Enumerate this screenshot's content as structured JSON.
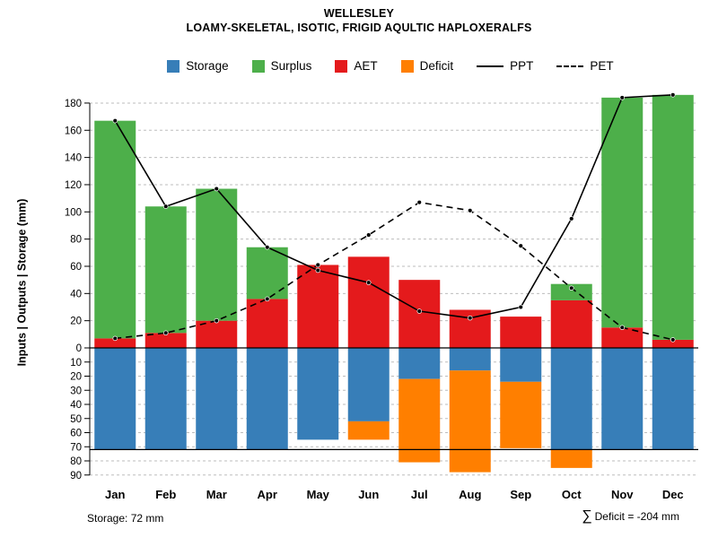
{
  "title": "WELLESLEY",
  "subtitle": "LOAMY-SKELETAL, ISOTIC, FRIGID AQULTIC HAPLOXERALFS",
  "ylabel": "Inputs | Outputs | Storage  (mm)",
  "legend": {
    "items": [
      {
        "label": "Storage",
        "type": "box",
        "color": "#377EB8"
      },
      {
        "label": "Surplus",
        "type": "box",
        "color": "#4DAF4A"
      },
      {
        "label": "AET",
        "type": "box",
        "color": "#E41A1C"
      },
      {
        "label": "Deficit",
        "type": "box",
        "color": "#FF7F00"
      },
      {
        "label": "PPT",
        "type": "line-solid",
        "color": "#000000"
      },
      {
        "label": "PET",
        "type": "line-dashed",
        "color": "#000000"
      }
    ]
  },
  "footer": {
    "storage_note": "Storage: 72 mm",
    "deficit_sigma": "∑",
    "deficit_note": " Deficit = -204 mm"
  },
  "chart_data": {
    "type": "bar",
    "title": "WELLESLEY",
    "subtitle": "LOAMY-SKELETAL, ISOTIC, FRIGID AQULTIC HAPLOXERALFS",
    "ylabel": "Inputs | Outputs | Storage (mm)",
    "categories": [
      "Jan",
      "Feb",
      "Mar",
      "Apr",
      "May",
      "Jun",
      "Jul",
      "Aug",
      "Sep",
      "Oct",
      "Nov",
      "Dec"
    ],
    "y_axis_up": {
      "ticks": [
        0,
        20,
        40,
        60,
        80,
        100,
        120,
        140,
        160,
        180
      ],
      "max": 195,
      "units": "mm"
    },
    "y_axis_down": {
      "ticks": [
        10,
        20,
        30,
        40,
        50,
        60,
        70,
        80,
        90
      ],
      "max": 90,
      "units": "mm"
    },
    "grid": "dashed-horizontal",
    "legend_position": "top",
    "reference_lines": [
      {
        "name": "zero",
        "value": 0
      },
      {
        "name": "max-storage",
        "value": -72
      }
    ],
    "series": [
      {
        "name": "AET",
        "kind": "bar",
        "direction": "up",
        "stack_order": 1,
        "color": "#E41A1C",
        "values": [
          7,
          11,
          20,
          36,
          61,
          67,
          50,
          28,
          23,
          35,
          15,
          6
        ]
      },
      {
        "name": "Surplus",
        "kind": "bar",
        "direction": "up",
        "stack_order": 2,
        "color": "#4DAF4A",
        "values": [
          160,
          93,
          97,
          38,
          0,
          0,
          0,
          0,
          0,
          12,
          169,
          180
        ]
      },
      {
        "name": "Storage",
        "kind": "bar",
        "direction": "down",
        "stack_order": 1,
        "color": "#377EB8",
        "values": [
          72,
          72,
          72,
          72,
          65,
          52,
          22,
          16,
          24,
          72,
          72,
          72
        ]
      },
      {
        "name": "Deficit",
        "kind": "bar",
        "direction": "down",
        "stack_order": 2,
        "color": "#FF7F00",
        "values": [
          0,
          0,
          0,
          0,
          0,
          13,
          59,
          72,
          47,
          13,
          0,
          0
        ]
      },
      {
        "name": "PPT",
        "kind": "line",
        "style": "solid",
        "color": "#000000",
        "values": [
          167,
          104,
          117,
          74,
          57,
          48,
          27,
          22,
          30,
          95,
          184,
          186
        ]
      },
      {
        "name": "PET",
        "kind": "line",
        "style": "dashed",
        "color": "#000000",
        "values": [
          7,
          11,
          20,
          36,
          61,
          83,
          107,
          101,
          75,
          44,
          15,
          6
        ]
      }
    ],
    "annotations": [
      "Storage: 72 mm",
      "∑ Deficit = -204 mm"
    ]
  }
}
